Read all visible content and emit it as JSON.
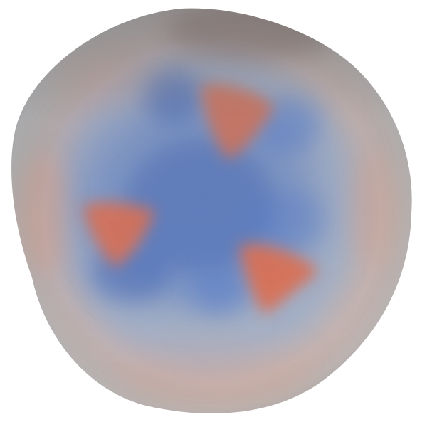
{
  "scene": {
    "background_color": "#ffffff",
    "palette": {
      "base_gray": "#bcbfc1",
      "shadow_gray": "#8f9296",
      "blue": "#4f79cf",
      "deep_blue": "#3e63b8",
      "light_blue": "#9ab0d8",
      "orange": "#e26e4f",
      "soft_orange": "#d9a08c",
      "dark_lobe": "#6b5a55"
    }
  }
}
